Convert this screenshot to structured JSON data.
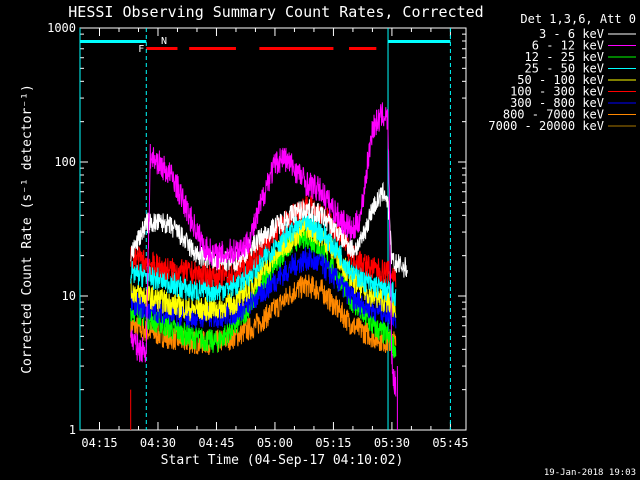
{
  "chart_data": {
    "type": "line",
    "title": "HESSI Observing Summary Count Rates, Corrected",
    "xlabel": "Start Time (04-Sep-17 04:10:02)",
    "ylabel": "Corrected Count Rate (s⁻¹ detector⁻¹)",
    "yscale": "log",
    "xlim": [
      "04:10",
      "05:49"
    ],
    "ylim": [
      1,
      1000
    ],
    "x_ticks": [
      "04:15",
      "04:30",
      "04:45",
      "05:00",
      "05:15",
      "05:30",
      "05:45"
    ],
    "y_ticks": [
      "1",
      "10",
      "100",
      "1000"
    ],
    "legend_title": "Det 1,3,6, Att 0",
    "legend_position": "outside-right",
    "footer_date": "19-Jan-2018 19:03",
    "annotations": [
      {
        "text": "F",
        "x": "04:27",
        "color": "#ff0000"
      },
      {
        "text": "N",
        "x": "04:30",
        "color": "#00ffff"
      }
    ],
    "night_intervals": [
      [
        "04:10",
        "04:27"
      ],
      [
        "05:29",
        "05:45"
      ]
    ],
    "flare_intervals": [
      [
        "04:27",
        "04:35"
      ],
      [
        "04:38",
        "04:50"
      ],
      [
        "04:56",
        "05:15"
      ],
      [
        "05:19",
        "05:26"
      ]
    ],
    "vertical_lines": [
      {
        "x": "04:10",
        "style": "solid"
      },
      {
        "x": "04:27",
        "style": "dashed"
      },
      {
        "x": "05:29",
        "style": "solid"
      },
      {
        "x": "05:45",
        "style": "dashed"
      }
    ],
    "series": [
      {
        "name": "3 - 6 keV",
        "color": "#ffffff",
        "points": [
          [
            "04:23",
            20
          ],
          [
            "04:27",
            35
          ],
          [
            "04:32",
            35
          ],
          [
            "04:35",
            30
          ],
          [
            "04:40",
            20
          ],
          [
            "04:45",
            18
          ],
          [
            "04:50",
            18
          ],
          [
            "04:55",
            25
          ],
          [
            "05:00",
            33
          ],
          [
            "05:05",
            42
          ],
          [
            "05:08",
            45
          ],
          [
            "05:12",
            40
          ],
          [
            "05:16",
            30
          ],
          [
            "05:20",
            22
          ],
          [
            "05:22",
            25
          ],
          [
            "05:25",
            45
          ],
          [
            "05:28",
            60
          ],
          [
            "05:29",
            50
          ],
          [
            "05:30",
            18
          ],
          [
            "05:34",
            16
          ]
        ]
      },
      {
        "name": "6 - 12 keV",
        "color": "#ff00ff",
        "points": [
          [
            "04:23",
            5
          ],
          [
            "04:25",
            4
          ],
          [
            "04:27",
            4
          ],
          [
            "04:28",
            110
          ],
          [
            "04:30",
            100
          ],
          [
            "04:34",
            75
          ],
          [
            "04:38",
            40
          ],
          [
            "04:42",
            23
          ],
          [
            "04:45",
            20
          ],
          [
            "04:50",
            22
          ],
          [
            "04:53",
            25
          ],
          [
            "04:55",
            35
          ],
          [
            "04:58",
            70
          ],
          [
            "05:00",
            95
          ],
          [
            "05:02",
            110
          ],
          [
            "05:05",
            90
          ],
          [
            "05:08",
            70
          ],
          [
            "05:10",
            65
          ],
          [
            "05:12",
            60
          ],
          [
            "05:16",
            40
          ],
          [
            "05:20",
            30
          ],
          [
            "05:22",
            40
          ],
          [
            "05:25",
            180
          ],
          [
            "05:28",
            230
          ],
          [
            "05:29",
            200
          ],
          [
            "05:30",
            3
          ],
          [
            "05:31",
            2
          ]
        ]
      },
      {
        "name": "12 - 25 keV",
        "color": "#00ff00",
        "points": [
          [
            "04:23",
            8
          ],
          [
            "04:27",
            7
          ],
          [
            "04:32",
            6
          ],
          [
            "04:38",
            5
          ],
          [
            "04:45",
            4.5
          ],
          [
            "04:50",
            6
          ],
          [
            "04:55",
            10
          ],
          [
            "05:00",
            18
          ],
          [
            "05:05",
            26
          ],
          [
            "05:08",
            28
          ],
          [
            "05:12",
            22
          ],
          [
            "05:16",
            14
          ],
          [
            "05:20",
            9
          ],
          [
            "05:25",
            6
          ],
          [
            "05:29",
            5
          ],
          [
            "05:31",
            4
          ]
        ]
      },
      {
        "name": "25 - 50 keV",
        "color": "#00ffff",
        "points": [
          [
            "04:23",
            15
          ],
          [
            "04:27",
            14
          ],
          [
            "04:32",
            13
          ],
          [
            "04:38",
            11
          ],
          [
            "04:45",
            11
          ],
          [
            "04:50",
            12
          ],
          [
            "04:55",
            16
          ],
          [
            "05:00",
            24
          ],
          [
            "05:05",
            32
          ],
          [
            "05:08",
            36
          ],
          [
            "05:12",
            30
          ],
          [
            "05:16",
            22
          ],
          [
            "05:20",
            15
          ],
          [
            "05:25",
            12
          ],
          [
            "05:29",
            11
          ],
          [
            "05:31",
            10
          ]
        ]
      },
      {
        "name": "50 - 100 keV",
        "color": "#ffff00",
        "points": [
          [
            "04:23",
            11
          ],
          [
            "04:27",
            10
          ],
          [
            "04:32",
            9
          ],
          [
            "04:38",
            8
          ],
          [
            "04:45",
            8
          ],
          [
            "04:50",
            9
          ],
          [
            "04:55",
            13
          ],
          [
            "05:00",
            20
          ],
          [
            "05:05",
            28
          ],
          [
            "05:08",
            33
          ],
          [
            "05:12",
            28
          ],
          [
            "05:16",
            20
          ],
          [
            "05:20",
            13
          ],
          [
            "05:25",
            10
          ],
          [
            "05:29",
            9
          ],
          [
            "05:31",
            8
          ]
        ]
      },
      {
        "name": "100 - 300 keV",
        "color": "#ff0000",
        "points": [
          [
            "04:23",
            20
          ],
          [
            "04:27",
            18
          ],
          [
            "04:32",
            16
          ],
          [
            "04:38",
            15
          ],
          [
            "04:45",
            14
          ],
          [
            "04:50",
            15
          ],
          [
            "04:55",
            20
          ],
          [
            "05:00",
            30
          ],
          [
            "05:05",
            42
          ],
          [
            "05:08",
            48
          ],
          [
            "05:12",
            42
          ],
          [
            "05:16",
            30
          ],
          [
            "05:20",
            20
          ],
          [
            "05:25",
            16
          ],
          [
            "05:29",
            15
          ],
          [
            "05:31",
            14
          ]
        ]
      },
      {
        "name": "300 - 800 keV",
        "color": "#0000ff",
        "points": [
          [
            "04:23",
            9
          ],
          [
            "04:27",
            8
          ],
          [
            "04:32",
            7.5
          ],
          [
            "04:38",
            7
          ],
          [
            "04:45",
            7
          ],
          [
            "04:50",
            7.5
          ],
          [
            "04:55",
            9.5
          ],
          [
            "05:00",
            13
          ],
          [
            "05:05",
            17
          ],
          [
            "05:08",
            19
          ],
          [
            "05:12",
            17
          ],
          [
            "05:16",
            13
          ],
          [
            "05:20",
            9.5
          ],
          [
            "05:25",
            8
          ],
          [
            "05:29",
            7.5
          ],
          [
            "05:31",
            7
          ]
        ]
      },
      {
        "name": "800 - 7000 keV",
        "color": "#ff8800",
        "points": [
          [
            "04:23",
            6
          ],
          [
            "04:27",
            5.5
          ],
          [
            "04:32",
            5
          ],
          [
            "04:38",
            4.5
          ],
          [
            "04:45",
            4.5
          ],
          [
            "04:50",
            5
          ],
          [
            "04:55",
            6
          ],
          [
            "05:00",
            8
          ],
          [
            "05:05",
            11
          ],
          [
            "05:08",
            12
          ],
          [
            "05:12",
            11
          ],
          [
            "05:16",
            8
          ],
          [
            "05:20",
            6
          ],
          [
            "05:25",
            5
          ],
          [
            "05:29",
            4.5
          ],
          [
            "05:31",
            4.5
          ]
        ]
      },
      {
        "name": "7000 - 20000 keV",
        "color": "#aa7700",
        "points": []
      }
    ]
  }
}
